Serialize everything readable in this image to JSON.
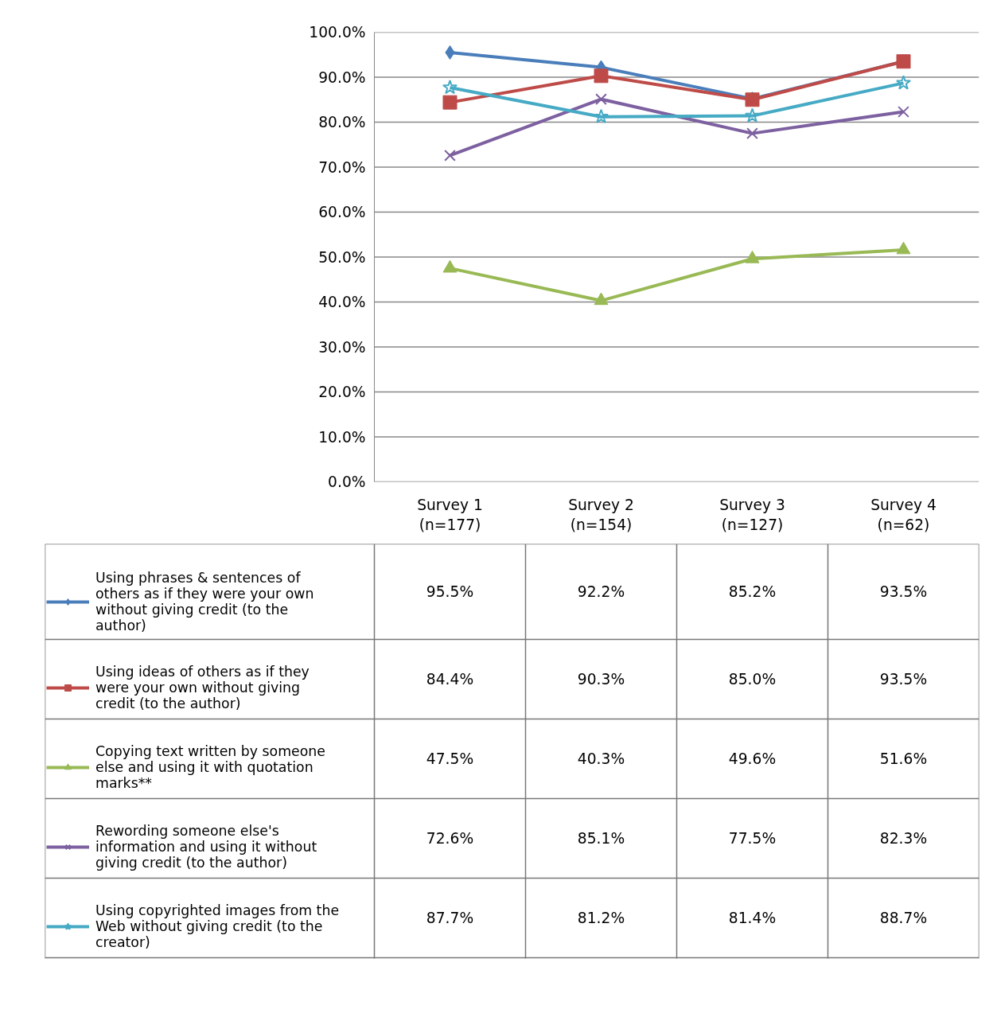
{
  "chart_data": {
    "type": "line",
    "categories": [
      "Survey 1\n(n=177)",
      "Survey 2\n(n=154)",
      "Survey 3\n(n=127)",
      "Survey 4\n(n=62)"
    ],
    "series": [
      {
        "name": "Using phrases & sentences of others as if they were your own without giving credit (to the author)",
        "color": "#4a7ebb",
        "marker": "diamond",
        "values": [
          95.5,
          92.2,
          85.2,
          93.5
        ],
        "value_labels": [
          "95.5%",
          "92.2%",
          "85.2%",
          "93.5%"
        ]
      },
      {
        "name": "Using ideas of others as if they were your own without giving credit (to the author)",
        "color": "#be4b48",
        "marker": "square",
        "values": [
          84.4,
          90.3,
          85.0,
          93.5
        ],
        "value_labels": [
          "84.4%",
          "90.3%",
          "85.0%",
          "93.5%"
        ]
      },
      {
        "name": "Copying text written by someone else and using it with quotation marks**",
        "color": "#98b954",
        "marker": "triangle",
        "values": [
          47.5,
          40.3,
          49.6,
          51.6
        ],
        "value_labels": [
          "47.5%",
          "40.3%",
          "49.6%",
          "51.6%"
        ]
      },
      {
        "name": "Rewording someone else's information and using it without giving credit (to the author)",
        "color": "#7d60a0",
        "marker": "cross",
        "values": [
          72.6,
          85.1,
          77.5,
          82.3
        ],
        "value_labels": [
          "72.6%",
          "85.1%",
          "77.5%",
          "82.3%"
        ]
      },
      {
        "name": "Using copyrighted images from the Web without giving credit (to the creator)",
        "color": "#46aac5",
        "marker": "star",
        "values": [
          87.7,
          81.2,
          81.4,
          88.7
        ],
        "value_labels": [
          "87.7%",
          "81.2%",
          "81.4%",
          "88.7%"
        ]
      }
    ],
    "ylim": [
      0,
      100
    ],
    "yticks": [
      {
        "value": 0,
        "label": "0.0%"
      },
      {
        "value": 10,
        "label": "10.0%"
      },
      {
        "value": 20,
        "label": "20.0%"
      },
      {
        "value": 30,
        "label": "30.0%"
      },
      {
        "value": 40,
        "label": "40.0%"
      },
      {
        "value": 50,
        "label": "50.0%"
      },
      {
        "value": 60,
        "label": "60.0%"
      },
      {
        "value": 70,
        "label": "70.0%"
      },
      {
        "value": 80,
        "label": "80.0%"
      },
      {
        "value": 90,
        "label": "90.0%"
      },
      {
        "value": 100,
        "label": "100.0%"
      }
    ],
    "grid": "y",
    "legend": "bottom",
    "line_style": "solid"
  }
}
